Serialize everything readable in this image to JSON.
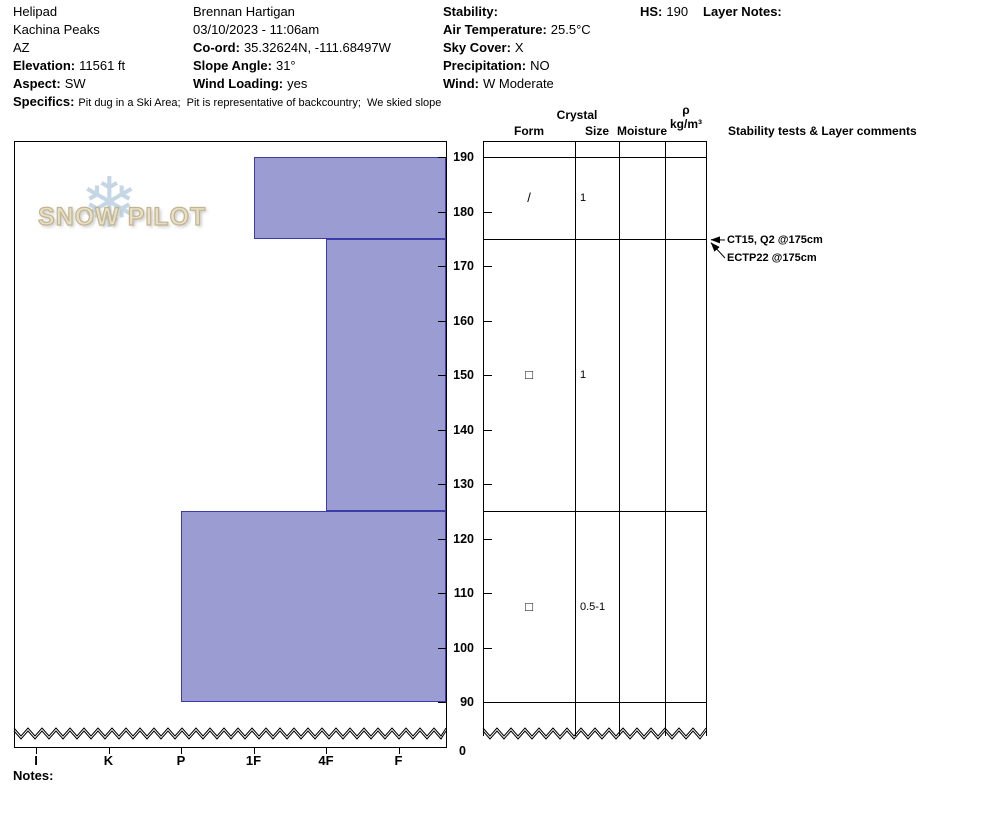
{
  "header": {
    "location": {
      "name": "Helipad",
      "range": "Kachina Peaks",
      "state": "AZ",
      "elevation_label": "Elevation:",
      "elevation": "11561 ft",
      "aspect_label": "Aspect:",
      "aspect": "SW"
    },
    "observation": {
      "observer": "Brennan Hartigan",
      "datetime": "03/10/2023 - 11:06am",
      "coord_label": "Co-ord:",
      "coord": "35.32624N, -111.68497W",
      "slope_angle_label": "Slope Angle:",
      "slope_angle": "31°",
      "wind_loading_label": "Wind Loading:",
      "wind_loading": "yes"
    },
    "conditions": {
      "stability_label": "Stability:",
      "stability": "",
      "air_temp_label": "Air Temperature:",
      "air_temp": "25.5°C",
      "sky_cover_label": "Sky Cover:",
      "sky_cover": "X",
      "precipitation_label": "Precipitation:",
      "precipitation": "NO",
      "wind_label": "Wind:",
      "wind": "W Moderate"
    },
    "hs_label": "HS:",
    "hs": "190",
    "layer_notes_label": "Layer Notes:",
    "specifics_label": "Specifics:",
    "specifics": "Pit dug in a Ski Area;  Pit is representative of backcountry;  We skied slope"
  },
  "logo": {
    "text": "SNOW PILOT",
    "snowflake": "❄"
  },
  "table_headers": {
    "crystal": "Crystal",
    "form": "Form",
    "size": "Size",
    "moisture": "Moisture",
    "density_symbol": "ρ",
    "density_unit": "kg/m³",
    "stability": "Stability tests & Layer comments"
  },
  "notes_label": "Notes:",
  "chart_data": {
    "type": "bar",
    "subtype": "snowpit-hardness-profile",
    "title": "Snow pit hardness profile",
    "hardness_categories": [
      "I",
      "K",
      "P",
      "1F",
      "4F",
      "F"
    ],
    "depth_ticks_cm": [
      190,
      180,
      170,
      160,
      150,
      140,
      130,
      120,
      110,
      100,
      90
    ],
    "baseline_label": "0",
    "total_height_cm": 190,
    "depth_axis_unit": "cm",
    "bar_fill": "#9b9cd2",
    "bar_border": "#3b3caa",
    "layers": [
      {
        "top_cm": 190,
        "bottom_cm": 175,
        "hardness": "1F",
        "grain_form_symbol": "/",
        "grain_size_mm": "1",
        "moisture": "",
        "density": ""
      },
      {
        "top_cm": 175,
        "bottom_cm": 125,
        "hardness": "4F",
        "grain_form_symbol": "□",
        "grain_size_mm": "1",
        "moisture": "",
        "density": ""
      },
      {
        "top_cm": 125,
        "bottom_cm": 90,
        "hardness": "P",
        "grain_form_symbol": "□",
        "grain_size_mm": "0.5-1",
        "moisture": "",
        "density": ""
      }
    ],
    "stability_tests": [
      {
        "label": "CT15, Q2 @175cm",
        "depth_cm": 175
      },
      {
        "label": "ECTP22 @175cm",
        "depth_cm": 175
      }
    ]
  }
}
